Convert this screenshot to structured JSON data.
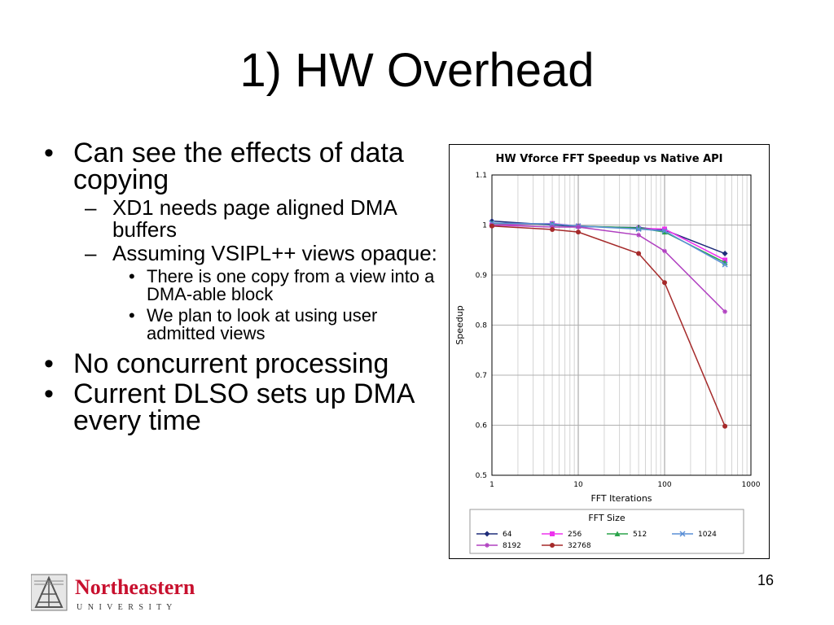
{
  "slide": {
    "title": "1) HW Overhead",
    "page_number": "16",
    "bullets": [
      "Can see the effects of data copying",
      "XD1 needs page aligned DMA buffers",
      "Assuming VSIPL++ views opaque:",
      "There is one copy from a view into a DMA-able block",
      "We plan to look at using user admitted views",
      "No concurrent processing",
      "Current DLSO sets up DMA every time"
    ]
  },
  "logo": {
    "name": "Northeastern",
    "sub": "U N I V E R S I T Y"
  },
  "chart_data": {
    "type": "line",
    "title": "HW Vforce FFT Speedup vs Native API",
    "xlabel": "FFT Iterations",
    "ylabel": "Speedup",
    "xscale": "log",
    "xlim": [
      1,
      1000
    ],
    "ylim": [
      0.5,
      1.1
    ],
    "xticks": [
      "1",
      "10",
      "100",
      "1000"
    ],
    "yticks": [
      "0.5",
      "0.6",
      "0.7",
      "0.8",
      "0.9",
      "1",
      "1.1"
    ],
    "grid": true,
    "legend_title": "FFT Size",
    "legend_position": "bottom",
    "x": [
      1,
      5,
      10,
      50,
      100,
      500
    ],
    "series": [
      {
        "name": "64",
        "color": "#1f2d7a",
        "marker": "diamond",
        "values": [
          1.008,
          1.0,
          0.997,
          0.995,
          0.99,
          0.943
        ]
      },
      {
        "name": "256",
        "color": "#ee33ee",
        "marker": "square",
        "values": [
          1.0,
          1.003,
          0.998,
          0.993,
          0.992,
          0.93
        ]
      },
      {
        "name": "512",
        "color": "#2aa34a",
        "marker": "triangle",
        "values": [
          1.003,
          1.002,
          0.998,
          0.994,
          0.986,
          0.925
        ]
      },
      {
        "name": "1024",
        "color": "#5a8fd6",
        "marker": "x",
        "values": [
          1.004,
          1.002,
          0.998,
          0.992,
          0.988,
          0.921
        ]
      },
      {
        "name": "8192",
        "color": "#b040c0",
        "marker": "star",
        "values": [
          1.0,
          0.996,
          0.996,
          0.98,
          0.948,
          0.827
        ]
      },
      {
        "name": "32768",
        "color": "#a52a2a",
        "marker": "circle",
        "values": [
          0.998,
          0.991,
          0.986,
          0.943,
          0.885,
          0.598
        ]
      }
    ]
  }
}
